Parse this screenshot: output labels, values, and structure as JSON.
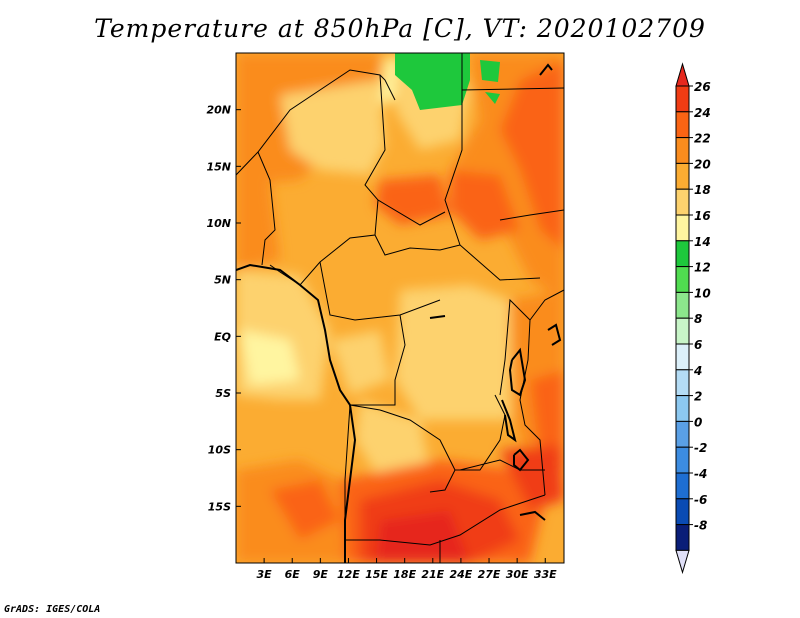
{
  "title": "Temperature at 850hPa [C], VT: 2020102709",
  "footer": "GrADS: IGES/COLA",
  "map": {
    "lon_range": [
      0,
      35
    ],
    "lat_range": [
      -20,
      25
    ],
    "x_ticks": [
      {
        "lon": 3,
        "label": "3E"
      },
      {
        "lon": 6,
        "label": "6E"
      },
      {
        "lon": 9,
        "label": "9E"
      },
      {
        "lon": 12,
        "label": "12E"
      },
      {
        "lon": 15,
        "label": "15E"
      },
      {
        "lon": 18,
        "label": "18E"
      },
      {
        "lon": 21,
        "label": "21E"
      },
      {
        "lon": 24,
        "label": "24E"
      },
      {
        "lon": 27,
        "label": "27E"
      },
      {
        "lon": 30,
        "label": "30E"
      },
      {
        "lon": 33,
        "label": "33E"
      }
    ],
    "y_ticks": [
      {
        "lat": 20,
        "label": "20N"
      },
      {
        "lat": 15,
        "label": "15N"
      },
      {
        "lat": 10,
        "label": "10N"
      },
      {
        "lat": 5,
        "label": "5N"
      },
      {
        "lat": 0,
        "label": "EQ"
      },
      {
        "lat": -5,
        "label": "5S"
      },
      {
        "lat": -10,
        "label": "10S"
      },
      {
        "lat": -15,
        "label": "15S"
      }
    ]
  },
  "colorbar": {
    "levels": [
      {
        "label": "26",
        "color": "#f03c14"
      },
      {
        "label": "24",
        "color": "#fa6414"
      },
      {
        "label": "22",
        "color": "#fa8c1e"
      },
      {
        "label": "20",
        "color": "#fbac32"
      },
      {
        "label": "18",
        "color": "#fdd26e"
      },
      {
        "label": "16",
        "color": "#fff5a0"
      },
      {
        "label": "14",
        "color": "#1ec83c"
      },
      {
        "label": "12",
        "color": "#50dc50"
      },
      {
        "label": "10",
        "color": "#8ce68c"
      },
      {
        "label": "8",
        "color": "#c8f5c8"
      },
      {
        "label": "6",
        "color": "#dcf0fa"
      },
      {
        "label": "4",
        "color": "#b4dcf5"
      },
      {
        "label": "2",
        "color": "#8cc8f0"
      },
      {
        "label": "0",
        "color": "#5aa0e6"
      },
      {
        "label": "-2",
        "color": "#3c8ce1"
      },
      {
        "label": "-4",
        "color": "#1e6ed2"
      },
      {
        "label": "-6",
        "color": "#0a4bb4"
      },
      {
        "label": "-8",
        "color": "#0a1e78"
      }
    ],
    "top_cap_color": "#e6281e",
    "bottom_cap_color": "#e0e0f8"
  }
}
